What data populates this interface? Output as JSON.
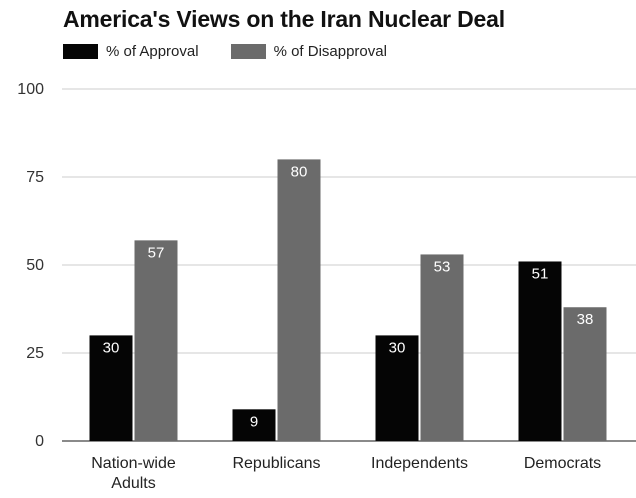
{
  "chart_data": {
    "type": "bar",
    "title": "America's Views on the Iran Nuclear Deal",
    "xlabel": "",
    "ylabel": "",
    "ylim": [
      0,
      100
    ],
    "yticks": [
      "0",
      "25",
      "50",
      "75",
      "100"
    ],
    "ytick_values": [
      0,
      25,
      50,
      75,
      100
    ],
    "grid": true,
    "legend_position": "top-left",
    "categories": [
      [
        "Nation-wide",
        "Adults"
      ],
      [
        "Republicans"
      ],
      [
        "Independents"
      ],
      [
        "Democrats"
      ]
    ],
    "series": [
      {
        "name": "% of Approval",
        "color": "#050505",
        "values": [
          30,
          9,
          30,
          51
        ]
      },
      {
        "name": "% of Disapproval",
        "color": "#6b6b6b",
        "values": [
          57,
          80,
          53,
          38
        ]
      }
    ]
  }
}
